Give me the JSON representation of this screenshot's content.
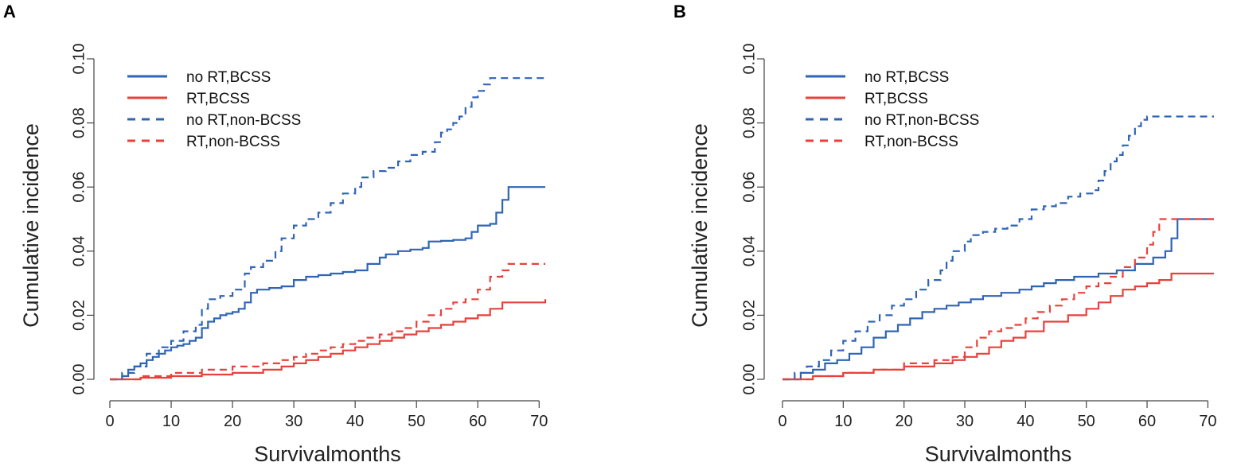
{
  "colors": {
    "blue": "#2f64b5",
    "red": "#e8413c",
    "axis": "#444444"
  },
  "chart_data": [
    {
      "panel_label": "A",
      "type": "line",
      "xlabel": "Survivalmonths",
      "ylabel": "Cumulative incidence",
      "xlim": [
        0,
        71
      ],
      "ylim": [
        0,
        0.1
      ],
      "xticks": [
        0,
        10,
        20,
        30,
        40,
        50,
        60,
        70
      ],
      "yticks": [
        "0.00",
        "0.02",
        "0.04",
        "0.06",
        "0.08",
        "0.10"
      ],
      "legend_position": "top-left",
      "series": [
        {
          "name": "no RT,BCSS",
          "color": "blue",
          "style": "solid",
          "x": [
            0,
            2,
            3,
            4,
            5,
            6,
            7,
            8,
            9,
            10,
            11,
            12,
            13,
            14,
            15,
            16,
            17,
            18,
            19,
            20,
            21,
            22,
            23,
            24,
            26,
            28,
            30,
            32,
            34,
            36,
            38,
            40,
            42,
            44,
            45,
            47,
            49,
            51,
            52,
            54,
            56,
            58,
            59,
            60,
            62,
            63,
            64,
            65,
            71
          ],
          "y": [
            0,
            0.001,
            0.003,
            0.004,
            0.005,
            0.006,
            0.007,
            0.008,
            0.009,
            0.01,
            0.0105,
            0.011,
            0.012,
            0.013,
            0.016,
            0.018,
            0.019,
            0.02,
            0.0205,
            0.021,
            0.022,
            0.024,
            0.027,
            0.028,
            0.0285,
            0.029,
            0.031,
            0.032,
            0.0325,
            0.033,
            0.0335,
            0.034,
            0.036,
            0.038,
            0.039,
            0.04,
            0.0405,
            0.041,
            0.043,
            0.0432,
            0.0435,
            0.044,
            0.046,
            0.048,
            0.0485,
            0.052,
            0.056,
            0.06,
            0.06
          ]
        },
        {
          "name": "RT,BCSS",
          "color": "red",
          "style": "solid",
          "x": [
            0,
            5,
            10,
            15,
            20,
            25,
            28,
            30,
            32,
            34,
            36,
            38,
            40,
            42,
            44,
            46,
            48,
            50,
            52,
            54,
            56,
            58,
            60,
            62,
            64,
            71
          ],
          "y": [
            0,
            0.0005,
            0.001,
            0.0015,
            0.002,
            0.003,
            0.004,
            0.005,
            0.006,
            0.007,
            0.008,
            0.009,
            0.01,
            0.011,
            0.012,
            0.013,
            0.014,
            0.015,
            0.016,
            0.017,
            0.018,
            0.019,
            0.02,
            0.022,
            0.024,
            0.025
          ]
        },
        {
          "name": "no RT,non-BCSS",
          "color": "blue",
          "style": "dashed",
          "x": [
            0,
            2,
            4,
            6,
            8,
            10,
            12,
            14,
            15,
            16,
            18,
            20,
            22,
            23,
            25,
            27,
            28,
            30,
            32,
            34,
            36,
            38,
            40,
            41,
            43,
            45,
            47,
            49,
            51,
            53,
            54,
            55,
            56,
            57,
            58,
            59,
            60,
            61,
            62,
            71
          ],
          "y": [
            0,
            0.002,
            0.004,
            0.008,
            0.01,
            0.012,
            0.015,
            0.017,
            0.022,
            0.025,
            0.026,
            0.028,
            0.033,
            0.035,
            0.037,
            0.04,
            0.044,
            0.048,
            0.05,
            0.052,
            0.055,
            0.058,
            0.06,
            0.063,
            0.065,
            0.066,
            0.068,
            0.07,
            0.071,
            0.074,
            0.077,
            0.078,
            0.08,
            0.082,
            0.085,
            0.088,
            0.09,
            0.092,
            0.094,
            0.094
          ]
        },
        {
          "name": "RT,non-BCSS",
          "color": "red",
          "style": "dashed",
          "x": [
            0,
            5,
            10,
            15,
            20,
            25,
            28,
            30,
            32,
            34,
            36,
            38,
            40,
            42,
            44,
            46,
            48,
            50,
            52,
            54,
            56,
            58,
            60,
            62,
            64,
            65,
            71
          ],
          "y": [
            0,
            0.001,
            0.002,
            0.003,
            0.004,
            0.005,
            0.006,
            0.007,
            0.008,
            0.009,
            0.01,
            0.011,
            0.012,
            0.013,
            0.014,
            0.015,
            0.016,
            0.018,
            0.02,
            0.022,
            0.024,
            0.025,
            0.028,
            0.032,
            0.034,
            0.036,
            0.036
          ]
        }
      ]
    },
    {
      "panel_label": "B",
      "type": "line",
      "xlabel": "Survivalmonths",
      "ylabel": "Cumulative incidence",
      "xlim": [
        0,
        71
      ],
      "ylim": [
        0,
        0.1
      ],
      "xticks": [
        0,
        10,
        20,
        30,
        40,
        50,
        60,
        70
      ],
      "yticks": [
        "0.00",
        "0.02",
        "0.04",
        "0.06",
        "0.08",
        "0.10"
      ],
      "legend_position": "top-left",
      "series": [
        {
          "name": "no RT,BCSS",
          "color": "blue",
          "style": "solid",
          "x": [
            0,
            3,
            5,
            7,
            9,
            11,
            13,
            15,
            17,
            19,
            21,
            23,
            25,
            27,
            29,
            31,
            33,
            36,
            39,
            41,
            43,
            45,
            48,
            52,
            55,
            58,
            61,
            63,
            64,
            65,
            71
          ],
          "y": [
            0,
            0.002,
            0.003,
            0.005,
            0.006,
            0.008,
            0.01,
            0.013,
            0.015,
            0.017,
            0.019,
            0.021,
            0.022,
            0.023,
            0.024,
            0.025,
            0.026,
            0.027,
            0.028,
            0.029,
            0.03,
            0.031,
            0.032,
            0.033,
            0.034,
            0.036,
            0.038,
            0.04,
            0.044,
            0.05,
            0.05
          ]
        },
        {
          "name": "RT,BCSS",
          "color": "red",
          "style": "solid",
          "x": [
            0,
            5,
            10,
            15,
            20,
            25,
            28,
            30,
            32,
            34,
            36,
            38,
            40,
            43,
            47,
            50,
            52,
            54,
            56,
            58,
            60,
            62,
            64,
            71
          ],
          "y": [
            0,
            0.001,
            0.002,
            0.003,
            0.004,
            0.005,
            0.006,
            0.007,
            0.008,
            0.01,
            0.012,
            0.013,
            0.015,
            0.018,
            0.02,
            0.022,
            0.024,
            0.026,
            0.028,
            0.029,
            0.03,
            0.031,
            0.033,
            0.033
          ]
        },
        {
          "name": "no RT,non-BCSS",
          "color": "blue",
          "style": "dashed",
          "x": [
            0,
            2,
            4,
            6,
            8,
            10,
            12,
            14,
            16,
            18,
            20,
            22,
            24,
            26,
            27,
            28,
            30,
            31,
            33,
            35,
            37,
            39,
            41,
            43,
            45,
            47,
            49,
            51,
            52,
            53,
            54,
            55,
            56,
            57,
            58,
            59,
            60,
            71
          ],
          "y": [
            0,
            0.002,
            0.004,
            0.006,
            0.009,
            0.012,
            0.015,
            0.018,
            0.02,
            0.023,
            0.025,
            0.028,
            0.031,
            0.034,
            0.037,
            0.04,
            0.043,
            0.045,
            0.046,
            0.047,
            0.048,
            0.05,
            0.053,
            0.054,
            0.055,
            0.057,
            0.058,
            0.059,
            0.062,
            0.065,
            0.068,
            0.07,
            0.073,
            0.076,
            0.079,
            0.081,
            0.082,
            0.082
          ]
        },
        {
          "name": "RT,non-BCSS",
          "color": "red",
          "style": "dashed",
          "x": [
            0,
            5,
            10,
            15,
            20,
            25,
            28,
            30,
            32,
            34,
            36,
            38,
            40,
            42,
            44,
            46,
            48,
            50,
            52,
            54,
            56,
            58,
            60,
            61,
            62,
            71
          ],
          "y": [
            0,
            0.001,
            0.002,
            0.003,
            0.005,
            0.006,
            0.007,
            0.01,
            0.013,
            0.015,
            0.016,
            0.017,
            0.019,
            0.021,
            0.023,
            0.025,
            0.027,
            0.029,
            0.03,
            0.032,
            0.035,
            0.038,
            0.042,
            0.046,
            0.05,
            0.05
          ]
        }
      ]
    }
  ]
}
